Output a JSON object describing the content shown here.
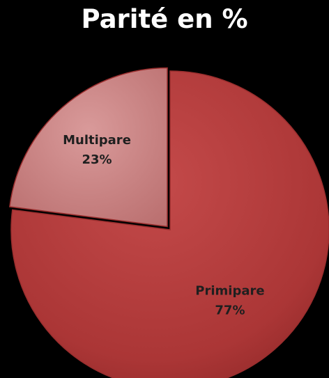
{
  "chart_data": {
    "type": "pie",
    "title": "Parité en %",
    "slices": [
      {
        "name": "Primipare",
        "value": 77,
        "label_value": "77%",
        "color": "#b23a3a"
      },
      {
        "name": "Multipare",
        "value": 23,
        "label_value": "23%",
        "color": "#cd8a8a"
      }
    ],
    "start_angle_deg": 0,
    "direction": "clockwise",
    "exploded": "Multipare",
    "legend": "none"
  }
}
